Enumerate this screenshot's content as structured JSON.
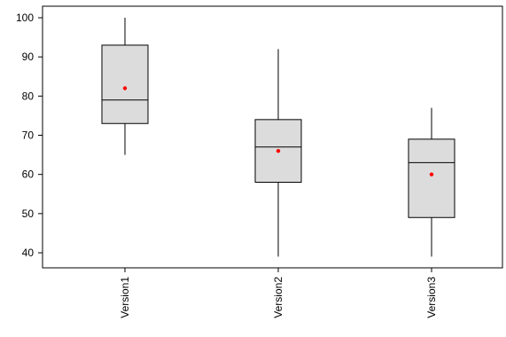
{
  "chart_data": {
    "type": "box",
    "categories": [
      "Version1",
      "Version2",
      "Version3"
    ],
    "y_ticks": [
      "100",
      "90",
      "80",
      "70",
      "60",
      "50",
      "40"
    ],
    "ylim": [
      36,
      104
    ],
    "grid": false,
    "boxes": [
      {
        "name": "Version1",
        "min": 65,
        "q1": 73,
        "median": 79,
        "q3": 93,
        "max": 100,
        "mean": 82
      },
      {
        "name": "Version2",
        "min": 39,
        "q1": 58,
        "median": 67,
        "q3": 74,
        "max": 92,
        "mean": 66
      },
      {
        "name": "Version3",
        "min": 39,
        "q1": 49,
        "median": 63,
        "q3": 69,
        "max": 77,
        "mean": 60
      }
    ],
    "colors": {
      "box_fill": "#dcdcdc",
      "mean_marker": "#ff0000",
      "line": "#000000"
    }
  }
}
